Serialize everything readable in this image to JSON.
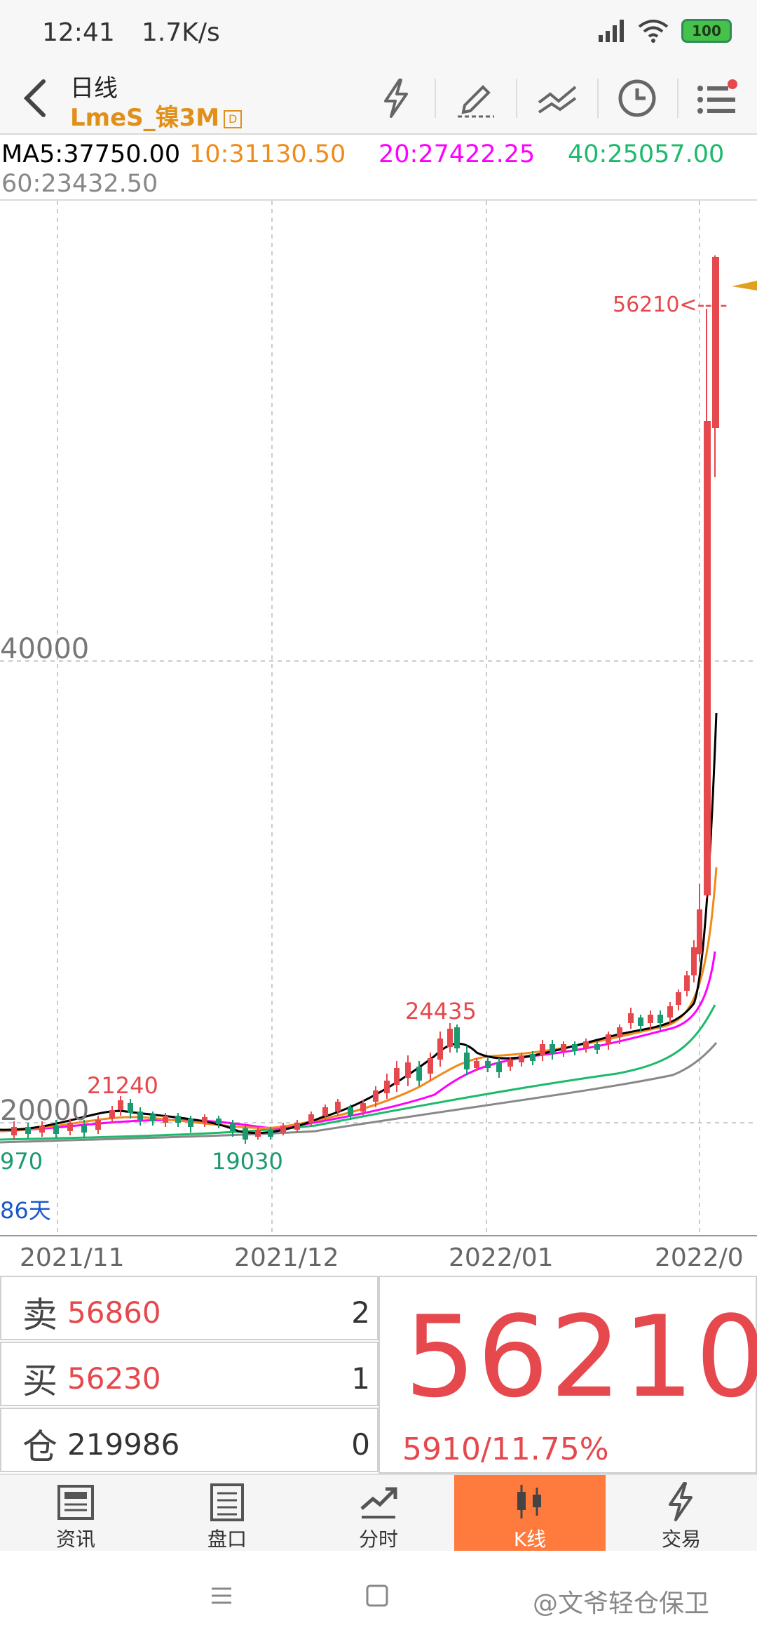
{
  "status": {
    "time": "12:41",
    "speed": "1.7K/s",
    "battery": "100"
  },
  "header": {
    "title": "日线",
    "subtitle": "LmeS_镍3M",
    "badge": "D"
  },
  "ma": {
    "ma5": "MA5:37750.00",
    "ma10": "10:31130.50",
    "ma20": "20:27422.25",
    "ma40": "40:25057.00",
    "ma60": "60:23432.50",
    "colors": {
      "ma5": "#000000",
      "ma10": "#f08a19",
      "ma20": "#ff00ff",
      "ma40": "#1dba6b",
      "ma60": "#888888"
    }
  },
  "chart": {
    "y_label_40000": "40000",
    "y_label_20000": "20000",
    "left_low_label": "970",
    "days_label": "86天",
    "high_label": "56210<----",
    "label_21240": "21240",
    "label_19030": "19030",
    "label_24435": "24435",
    "x_labels": [
      "2021/11",
      "2021/12",
      "2022/01",
      "2022/0"
    ]
  },
  "quote": {
    "sell_key": "卖",
    "sell_price": "56860",
    "sell_qty": "2",
    "buy_key": "买",
    "buy_price": "56230",
    "buy_qty": "1",
    "oi_key": "仓",
    "oi_value": "219986",
    "oi_qty": "0",
    "last_price": "56210",
    "change": "5910/11.75%"
  },
  "nav": [
    {
      "label": "资讯"
    },
    {
      "label": "盘口"
    },
    {
      "label": "分时"
    },
    {
      "label": "K线"
    },
    {
      "label": "交易"
    }
  ],
  "watermark": "@文爷轻仓保卫"
}
